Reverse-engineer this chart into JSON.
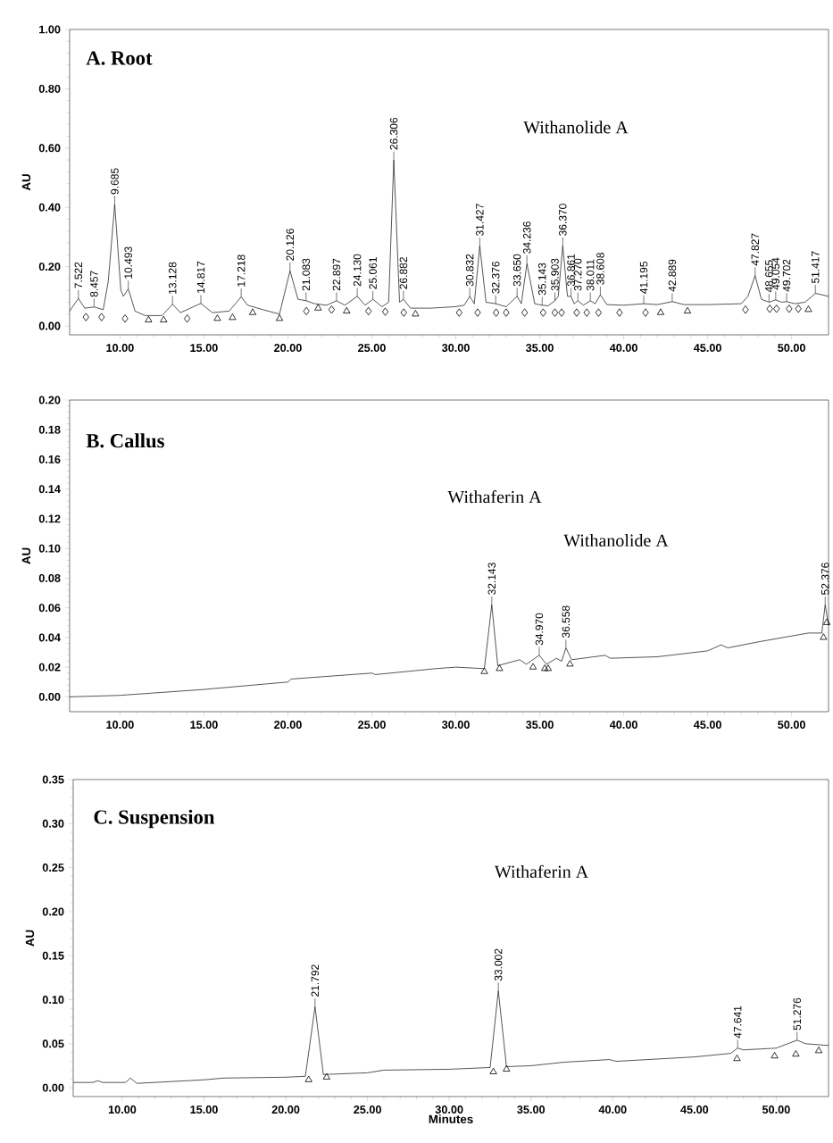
{
  "chart_data": [
    {
      "type": "line",
      "title": "A. Root",
      "ylabel": "AU",
      "xlim": [
        7,
        52.2
      ],
      "ylim": [
        -0.03,
        1.0
      ],
      "xticks": [
        {
          "value": 10,
          "label": "10.00"
        },
        {
          "value": 15,
          "label": "15.00"
        },
        {
          "value": 20,
          "label": "20.00"
        },
        {
          "value": 25,
          "label": "25.00"
        },
        {
          "value": 30,
          "label": "30.00"
        },
        {
          "value": 35,
          "label": "35.00"
        },
        {
          "value": 40,
          "label": "40.00"
        },
        {
          "value": 45,
          "label": "45.00"
        },
        {
          "value": 50,
          "label": "50.00"
        }
      ],
      "yticks": [
        {
          "value": 0,
          "label": "0.00"
        },
        {
          "value": 0.2,
          "label": "0.20"
        },
        {
          "value": 0.4,
          "label": "0.40"
        },
        {
          "value": 0.6,
          "label": "0.60"
        },
        {
          "value": 0.8,
          "label": "0.80"
        },
        {
          "value": 1.0,
          "label": "1.00"
        }
      ],
      "series": [
        {
          "color": "#000000",
          "x": [
            7.0,
            7.522,
            7.9,
            8.457,
            9.0,
            9.3,
            9.685,
            10.05,
            10.2,
            10.493,
            10.9,
            11.5,
            12.5,
            13.128,
            13.6,
            14.817,
            15.5,
            16.5,
            17.218,
            17.6,
            18.5,
            19.5,
            20.126,
            20.6,
            21.083,
            21.6,
            22.3,
            22.897,
            23.4,
            24.13,
            24.6,
            25.061,
            25.6,
            26.0,
            26.306,
            26.65,
            26.882,
            27.3,
            28.5,
            30.0,
            30.5,
            30.832,
            31.1,
            31.427,
            31.8,
            32.376,
            33.0,
            33.65,
            33.9,
            34.236,
            34.7,
            35.143,
            35.5,
            35.903,
            36.1,
            36.37,
            36.65,
            36.861,
            37.05,
            37.27,
            37.6,
            38.011,
            38.3,
            38.608,
            39.0,
            40.0,
            41.195,
            42.0,
            42.889,
            43.6,
            45.0,
            47.0,
            47.4,
            47.827,
            48.2,
            48.655,
            49.054,
            49.4,
            49.702,
            50.2,
            50.8,
            51.417,
            52.2
          ],
          "values": [
            0.05,
            0.093,
            0.06,
            0.064,
            0.055,
            0.15,
            0.41,
            0.12,
            0.1,
            0.125,
            0.05,
            0.035,
            0.035,
            0.073,
            0.045,
            0.076,
            0.045,
            0.05,
            0.098,
            0.07,
            0.055,
            0.04,
            0.186,
            0.09,
            0.085,
            0.075,
            0.07,
            0.085,
            0.07,
            0.1,
            0.07,
            0.09,
            0.065,
            0.08,
            0.56,
            0.08,
            0.09,
            0.06,
            0.06,
            0.065,
            0.07,
            0.1,
            0.075,
            0.27,
            0.08,
            0.075,
            0.065,
            0.1,
            0.075,
            0.21,
            0.075,
            0.07,
            0.068,
            0.085,
            0.1,
            0.27,
            0.1,
            0.1,
            0.075,
            0.085,
            0.07,
            0.085,
            0.075,
            0.105,
            0.072,
            0.07,
            0.075,
            0.072,
            0.082,
            0.072,
            0.072,
            0.075,
            0.1,
            0.17,
            0.09,
            0.08,
            0.088,
            0.08,
            0.082,
            0.075,
            0.08,
            0.11,
            0.1
          ]
        },
        {
          "type": "scatter",
          "marker": "diamond",
          "color": "#000000",
          "x": [
            7.97,
            8.9,
            10.3,
            14.0,
            21.1,
            22.6,
            24.8,
            25.8,
            26.9,
            30.2,
            31.3,
            32.4,
            33.0,
            34.1,
            35.2,
            35.9,
            36.3,
            37.2,
            37.8,
            38.5,
            39.75,
            41.3,
            47.25,
            48.7,
            49.1,
            49.85,
            50.4
          ],
          "values": [
            0.03,
            0.03,
            0.025,
            0.025,
            0.05,
            0.055,
            0.05,
            0.048,
            0.045,
            0.045,
            0.045,
            0.045,
            0.045,
            0.045,
            0.045,
            0.045,
            0.045,
            0.045,
            0.045,
            0.045,
            0.045,
            0.045,
            0.055,
            0.058,
            0.058,
            0.058,
            0.058
          ]
        },
        {
          "type": "scatter",
          "marker": "triangle",
          "color": "#000000",
          "x": [
            11.7,
            12.6,
            15.8,
            16.7,
            17.9,
            19.5,
            21.8,
            23.5,
            27.6,
            42.2,
            43.8,
            51.0
          ],
          "values": [
            0.02,
            0.02,
            0.025,
            0.028,
            0.045,
            0.025,
            0.06,
            0.05,
            0.04,
            0.045,
            0.05,
            0.055
          ]
        }
      ],
      "annotations": [
        "Withanolide A",
        {
          "text": "7.522",
          "x": 7.522,
          "y": 0.093
        },
        {
          "text": "8.457",
          "x": 8.457,
          "y": 0.064
        },
        {
          "text": "9.685",
          "x": 9.685,
          "y": 0.41
        },
        {
          "text": "10.493",
          "x": 10.493,
          "y": 0.125
        },
        {
          "text": "13.128",
          "x": 13.128,
          "y": 0.073
        },
        {
          "text": "14.817",
          "x": 14.817,
          "y": 0.076
        },
        {
          "text": "17.218",
          "x": 17.218,
          "y": 0.098
        },
        {
          "text": "20.126",
          "x": 20.126,
          "y": 0.186
        },
        {
          "text": "21.083",
          "x": 21.083,
          "y": 0.085
        },
        {
          "text": "22.897",
          "x": 22.897,
          "y": 0.085
        },
        {
          "text": "24.130",
          "x": 24.13,
          "y": 0.1
        },
        {
          "text": "25.061",
          "x": 25.061,
          "y": 0.09
        },
        {
          "text": "26.306",
          "x": 26.306,
          "y": 0.56
        },
        {
          "text": "26.882",
          "x": 26.882,
          "y": 0.09
        },
        {
          "text": "30.832",
          "x": 30.832,
          "y": 0.1
        },
        {
          "text": "31.427",
          "x": 31.427,
          "y": 0.27
        },
        {
          "text": "32.376",
          "x": 32.376,
          "y": 0.075
        },
        {
          "text": "33.650",
          "x": 33.65,
          "y": 0.1
        },
        {
          "text": "34.236",
          "x": 34.236,
          "y": 0.21
        },
        {
          "text": "35.143",
          "x": 35.143,
          "y": 0.07
        },
        {
          "text": "35.903",
          "x": 35.903,
          "y": 0.085
        },
        {
          "text": "36.370",
          "x": 36.37,
          "y": 0.27
        },
        {
          "text": "36.861",
          "x": 36.861,
          "y": 0.1
        },
        {
          "text": "37.270",
          "x": 37.27,
          "y": 0.085
        },
        {
          "text": "38.011",
          "x": 38.011,
          "y": 0.085
        },
        {
          "text": "38.608",
          "x": 38.608,
          "y": 0.105
        },
        {
          "text": "41.195",
          "x": 41.195,
          "y": 0.075
        },
        {
          "text": "42.889",
          "x": 42.889,
          "y": 0.082
        },
        {
          "text": "47.827",
          "x": 47.827,
          "y": 0.17
        },
        {
          "text": "48.655",
          "x": 48.655,
          "y": 0.08
        },
        {
          "text": "49.054",
          "x": 49.054,
          "y": 0.088
        },
        {
          "text": "49.702",
          "x": 49.702,
          "y": 0.082
        },
        {
          "text": "51.417",
          "x": 51.417,
          "y": 0.11
        }
      ]
    },
    {
      "type": "line",
      "title": "B. Callus",
      "ylabel": "AU",
      "xlim": [
        7,
        52.2
      ],
      "ylim": [
        -0.01,
        0.2
      ],
      "xticks": [
        {
          "value": 10,
          "label": "10.00"
        },
        {
          "value": 15,
          "label": "15.00"
        },
        {
          "value": 20,
          "label": "20.00"
        },
        {
          "value": 25,
          "label": "25.00"
        },
        {
          "value": 30,
          "label": "30.00"
        },
        {
          "value": 35,
          "label": "35.00"
        },
        {
          "value": 40,
          "label": "40.00"
        },
        {
          "value": 45,
          "label": "45.00"
        },
        {
          "value": 50,
          "label": "50.00"
        }
      ],
      "yticks": [
        {
          "value": 0,
          "label": "0.00"
        },
        {
          "value": 0.02,
          "label": "0.02"
        },
        {
          "value": 0.04,
          "label": "0.04"
        },
        {
          "value": 0.06,
          "label": "0.06"
        },
        {
          "value": 0.08,
          "label": "0.08"
        },
        {
          "value": 0.1,
          "label": "0.10"
        },
        {
          "value": 0.12,
          "label": "0.12"
        },
        {
          "value": 0.14,
          "label": "0.14"
        },
        {
          "value": 0.16,
          "label": "0.16"
        },
        {
          "value": 0.18,
          "label": "0.18"
        },
        {
          "value": 0.2,
          "label": "0.20"
        }
      ],
      "series": [
        {
          "color": "#000000",
          "x": [
            7.0,
            10.0,
            15.0,
            20.0,
            20.2,
            25.0,
            25.2,
            28.8,
            30.0,
            31.7,
            32.143,
            32.5,
            33.8,
            34.2,
            34.97,
            35.4,
            36.0,
            36.3,
            36.558,
            36.9,
            38.9,
            39.2,
            42.0,
            45.0,
            45.8,
            46.2,
            48.0,
            50.0,
            51.0,
            51.8,
            52.0,
            52.2
          ],
          "values": [
            0.0,
            0.001,
            0.005,
            0.01,
            0.012,
            0.016,
            0.015,
            0.019,
            0.02,
            0.019,
            0.062,
            0.021,
            0.025,
            0.022,
            0.028,
            0.022,
            0.026,
            0.024,
            0.033,
            0.025,
            0.028,
            0.026,
            0.027,
            0.031,
            0.035,
            0.033,
            0.037,
            0.041,
            0.043,
            0.043,
            0.062,
            0.048
          ]
        },
        {
          "type": "scatter",
          "marker": "triangle",
          "color": "#000000",
          "x": [
            31.7,
            32.6,
            34.6,
            35.3,
            35.5,
            36.8,
            51.9,
            52.1
          ],
          "values": [
            0.017,
            0.019,
            0.02,
            0.019,
            0.019,
            0.022,
            0.04,
            0.05
          ]
        }
      ],
      "annotations": [
        "Withaferin A",
        "Withanolide A",
        {
          "text": "32.143",
          "x": 32.143,
          "y": 0.062
        },
        {
          "text": "34.970",
          "x": 34.97,
          "y": 0.028
        },
        {
          "text": "36.558",
          "x": 36.558,
          "y": 0.033
        },
        {
          "text": "52.376",
          "x": 52.0,
          "y": 0.062
        }
      ]
    },
    {
      "type": "line",
      "title": "C. Suspension",
      "ylabel": "AU",
      "xlabel": "Minutes",
      "xlim": [
        7,
        53.2
      ],
      "ylim": [
        -0.01,
        0.35
      ],
      "xticks": [
        {
          "value": 10,
          "label": "10.00"
        },
        {
          "value": 15,
          "label": "15.00"
        },
        {
          "value": 20,
          "label": "20.00"
        },
        {
          "value": 25,
          "label": "25.00"
        },
        {
          "value": 30,
          "label": "30.00"
        },
        {
          "value": 35,
          "label": "35.00"
        },
        {
          "value": 40,
          "label": "40.00"
        },
        {
          "value": 45,
          "label": "45.00"
        },
        {
          "value": 50,
          "label": "50.00"
        }
      ],
      "yticks": [
        {
          "value": 0,
          "label": "0.00"
        },
        {
          "value": 0.05,
          "label": "0.05"
        },
        {
          "value": 0.1,
          "label": "0.10"
        },
        {
          "value": 0.15,
          "label": "0.15"
        },
        {
          "value": 0.2,
          "label": "0.20"
        },
        {
          "value": 0.25,
          "label": "0.25"
        },
        {
          "value": 0.3,
          "label": "0.30"
        },
        {
          "value": 0.35,
          "label": "0.35"
        }
      ],
      "series": [
        {
          "color": "#000000",
          "x": [
            7.0,
            8.2,
            8.5,
            8.8,
            10.2,
            10.5,
            10.9,
            15.0,
            16.2,
            20.0,
            21.2,
            21.792,
            22.3,
            25.0,
            26.0,
            30.0,
            32.5,
            33.002,
            33.5,
            35.0,
            37.0,
            39.8,
            40.2,
            45.0,
            47.2,
            47.641,
            48.0,
            49.0,
            50.0,
            51.276,
            51.8,
            53.2
          ],
          "values": [
            0.006,
            0.006,
            0.008,
            0.006,
            0.006,
            0.011,
            0.005,
            0.009,
            0.011,
            0.012,
            0.013,
            0.092,
            0.015,
            0.017,
            0.02,
            0.021,
            0.023,
            0.11,
            0.024,
            0.025,
            0.029,
            0.032,
            0.03,
            0.035,
            0.039,
            0.045,
            0.043,
            0.044,
            0.045,
            0.054,
            0.05,
            0.048
          ]
        },
        {
          "type": "scatter",
          "marker": "triangle",
          "color": "#000000",
          "x": [
            21.4,
            22.5,
            32.7,
            33.5,
            47.6,
            49.9,
            51.2,
            52.6
          ],
          "values": [
            0.009,
            0.012,
            0.018,
            0.021,
            0.033,
            0.036,
            0.038,
            0.042
          ]
        }
      ],
      "annotations": [
        "Withaferin A",
        {
          "text": "21.792",
          "x": 21.792,
          "y": 0.092
        },
        {
          "text": "33.002",
          "x": 33.002,
          "y": 0.11
        },
        {
          "text": "47.641",
          "x": 47.641,
          "y": 0.045
        },
        {
          "text": "51.276",
          "x": 51.276,
          "y": 0.054
        }
      ]
    }
  ]
}
